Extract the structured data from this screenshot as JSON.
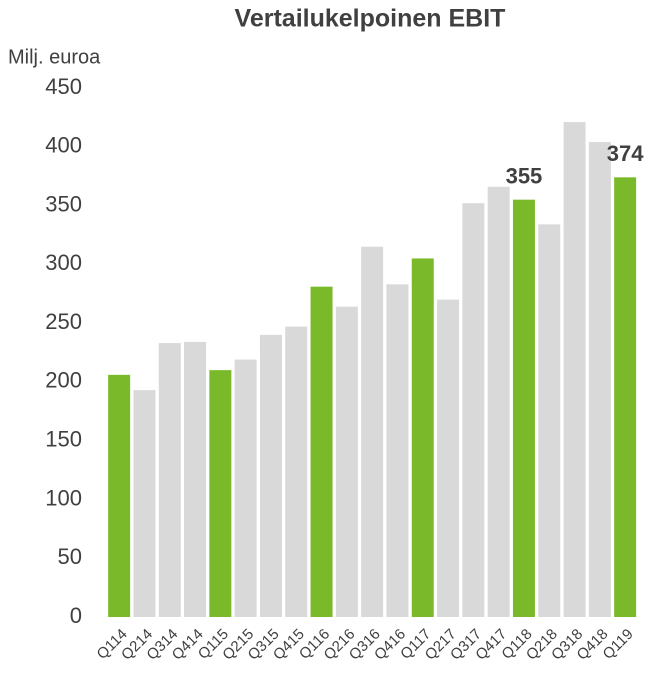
{
  "chart_data": {
    "type": "bar",
    "title": "Vertailukelpoinen EBIT",
    "y_label": "Milj. euroa",
    "categories": [
      "Q114",
      "Q214",
      "Q314",
      "Q414",
      "Q115",
      "Q215",
      "Q315",
      "Q415",
      "Q116",
      "Q216",
      "Q316",
      "Q416",
      "Q117",
      "Q217",
      "Q317",
      "Q417",
      "Q118",
      "Q218",
      "Q318",
      "Q418",
      "Q119"
    ],
    "values": [
      206,
      193,
      233,
      234,
      210,
      219,
      240,
      247,
      281,
      264,
      315,
      283,
      305,
      270,
      352,
      366,
      355,
      334,
      421,
      404,
      374
    ],
    "value_labels": [
      null,
      null,
      null,
      null,
      null,
      null,
      null,
      null,
      null,
      null,
      null,
      null,
      null,
      null,
      null,
      null,
      "355",
      null,
      null,
      null,
      "374"
    ],
    "colors": [
      "#7ab929",
      "#d9d9d9",
      "#d9d9d9",
      "#d9d9d9",
      "#7ab929",
      "#d9d9d9",
      "#d9d9d9",
      "#d9d9d9",
      "#7ab929",
      "#d9d9d9",
      "#d9d9d9",
      "#d9d9d9",
      "#7ab929",
      "#d9d9d9",
      "#d9d9d9",
      "#d9d9d9",
      "#7ab929",
      "#d9d9d9",
      "#d9d9d9",
      "#d9d9d9",
      "#7ab929"
    ],
    "ylim": [
      0,
      450
    ],
    "yticks": [
      0,
      50,
      100,
      150,
      200,
      250,
      300,
      350,
      400,
      450
    ],
    "grid": false
  }
}
